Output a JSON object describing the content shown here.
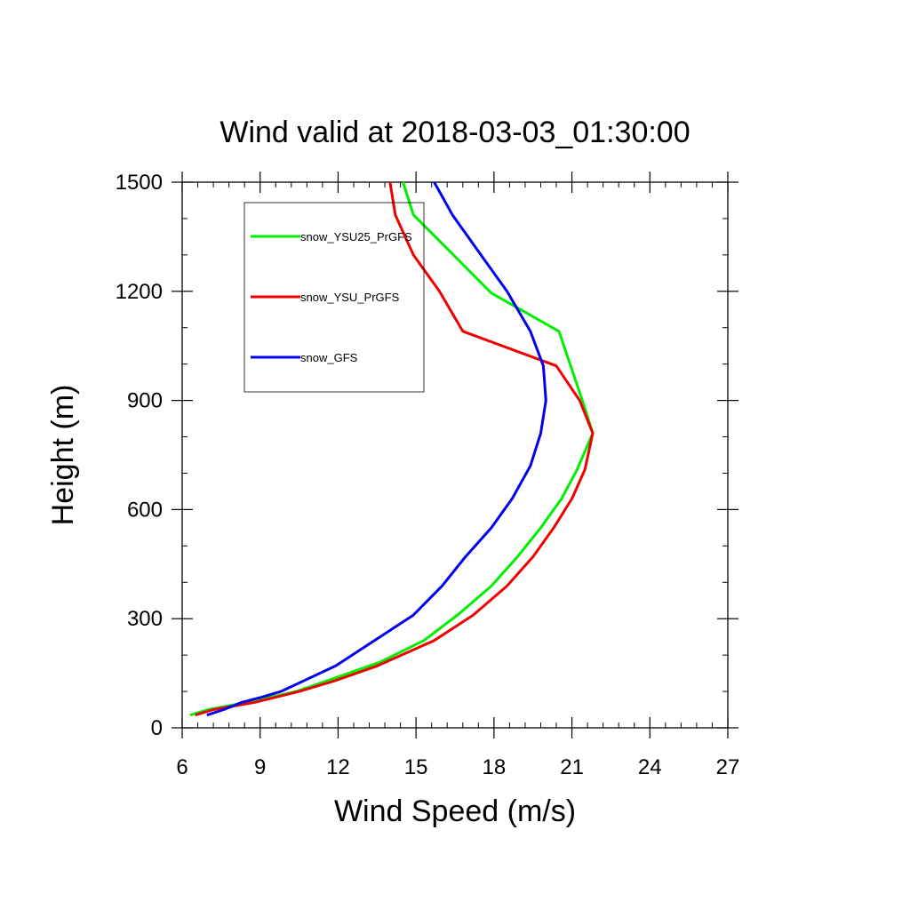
{
  "chart_data": {
    "type": "line",
    "title": "Wind valid at 2018-03-03_01:30:00",
    "xlabel": "Wind Speed (m/s)",
    "ylabel": "Height (m)",
    "xlim": [
      6,
      27
    ],
    "ylim": [
      0,
      1500
    ],
    "x_ticks": [
      6,
      9,
      12,
      15,
      18,
      21,
      24,
      27
    ],
    "x_tick_labels": [
      "6",
      "9",
      "12",
      "15",
      "18",
      "21",
      "24",
      "27"
    ],
    "y_ticks": [
      0,
      300,
      600,
      900,
      1200,
      1500
    ],
    "y_tick_labels": [
      "0",
      "300",
      "600",
      "900",
      "1200",
      "1500"
    ],
    "grid": false,
    "legend_position": "top-left",
    "series": [
      {
        "name": "snow_YSU25_PrGFS",
        "color": "#00ee00",
        "points": [
          [
            6.3,
            35
          ],
          [
            7.0,
            50
          ],
          [
            8.5,
            70
          ],
          [
            10.4,
            100
          ],
          [
            12.0,
            140
          ],
          [
            13.6,
            180
          ],
          [
            15.3,
            240
          ],
          [
            16.6,
            310
          ],
          [
            17.9,
            390
          ],
          [
            18.9,
            470
          ],
          [
            19.8,
            550
          ],
          [
            20.6,
            630
          ],
          [
            21.2,
            710
          ],
          [
            21.8,
            810
          ],
          [
            21.4,
            900
          ],
          [
            20.5,
            1090
          ],
          [
            17.9,
            1195
          ],
          [
            16.3,
            1310
          ],
          [
            14.9,
            1410
          ],
          [
            14.5,
            1500
          ]
        ]
      },
      {
        "name": "snow_YSU_PrGFS",
        "color": "#ee0000",
        "points": [
          [
            6.5,
            35
          ],
          [
            7.2,
            50
          ],
          [
            8.8,
            70
          ],
          [
            10.5,
            100
          ],
          [
            11.9,
            130
          ],
          [
            13.5,
            170
          ],
          [
            15.7,
            240
          ],
          [
            17.2,
            310
          ],
          [
            18.5,
            390
          ],
          [
            19.5,
            470
          ],
          [
            20.3,
            550
          ],
          [
            21.0,
            630
          ],
          [
            21.5,
            710
          ],
          [
            21.8,
            810
          ],
          [
            21.3,
            900
          ],
          [
            20.4,
            995
          ],
          [
            16.8,
            1090
          ],
          [
            15.9,
            1200
          ],
          [
            14.9,
            1300
          ],
          [
            14.2,
            1410
          ],
          [
            14.0,
            1500
          ]
        ]
      },
      {
        "name": "snow_GFS",
        "color": "#0000ee",
        "points": [
          [
            6.95,
            35
          ],
          [
            7.6,
            50
          ],
          [
            8.3,
            70
          ],
          [
            9.1,
            85
          ],
          [
            9.8,
            100
          ],
          [
            10.7,
            130
          ],
          [
            11.9,
            170
          ],
          [
            13.4,
            240
          ],
          [
            14.9,
            310
          ],
          [
            16.0,
            390
          ],
          [
            16.9,
            470
          ],
          [
            17.9,
            550
          ],
          [
            18.7,
            630
          ],
          [
            19.4,
            720
          ],
          [
            19.8,
            810
          ],
          [
            20.0,
            900
          ],
          [
            19.9,
            995
          ],
          [
            19.4,
            1090
          ],
          [
            18.5,
            1200
          ],
          [
            17.5,
            1300
          ],
          [
            16.4,
            1410
          ],
          [
            15.7,
            1500
          ]
        ]
      }
    ]
  }
}
